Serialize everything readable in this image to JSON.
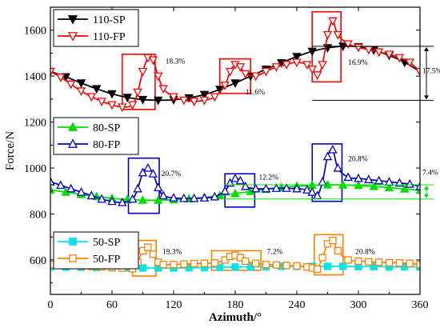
{
  "chart_data": {
    "type": "line",
    "title": "",
    "xlabel": "Azimuth/°",
    "ylabel": "Force/N",
    "xlim": [
      0,
      360
    ],
    "ylim": [
      450,
      1700
    ],
    "xticks": [
      0,
      60,
      120,
      180,
      240,
      300,
      360
    ],
    "yticks": [
      600,
      800,
      1000,
      1200,
      1400,
      1600
    ],
    "grid": false,
    "legends": [
      {
        "placement": "top-left",
        "entries": [
          "110-SP",
          "110-FP"
        ]
      },
      {
        "placement": "middle-left",
        "entries": [
          "80-SP",
          "80-FP"
        ]
      },
      {
        "placement": "bottom-left",
        "entries": [
          "50-SP",
          "50-FP"
        ]
      }
    ],
    "series": [
      {
        "name": "110-SP",
        "color": "#000000",
        "marker": "triangle-down",
        "filled": true,
        "x": [
          0,
          15,
          30,
          45,
          60,
          75,
          90,
          105,
          120,
          135,
          150,
          165,
          180,
          195,
          210,
          225,
          240,
          255,
          270,
          285,
          300,
          315,
          330,
          345,
          360
        ],
        "values": [
          1420,
          1397,
          1370,
          1345,
          1323,
          1307,
          1298,
          1295,
          1297,
          1305,
          1320,
          1342,
          1370,
          1400,
          1430,
          1458,
          1485,
          1508,
          1523,
          1530,
          1528,
          1513,
          1490,
          1460,
          1420
        ]
      },
      {
        "name": "110-FP",
        "color": "#ff0000",
        "marker": "triangle-down",
        "filled": false,
        "x": [
          0,
          10,
          20,
          30,
          40,
          50,
          60,
          70,
          80,
          85,
          90,
          95,
          100,
          105,
          110,
          120,
          130,
          140,
          150,
          160,
          170,
          175,
          180,
          185,
          190,
          200,
          210,
          220,
          230,
          240,
          250,
          255,
          260,
          265,
          270,
          275,
          280,
          290,
          300,
          310,
          320,
          330,
          340,
          350,
          360
        ],
        "values": [
          1420,
          1395,
          1365,
          1335,
          1310,
          1290,
          1275,
          1265,
          1275,
          1330,
          1420,
          1480,
          1470,
          1400,
          1345,
          1310,
          1295,
          1290,
          1295,
          1310,
          1360,
          1420,
          1450,
          1440,
          1410,
          1400,
          1420,
          1440,
          1450,
          1460,
          1450,
          1430,
          1405,
          1450,
          1580,
          1640,
          1580,
          1540,
          1525,
          1515,
          1505,
          1495,
          1480,
          1460,
          1420
        ]
      },
      {
        "name": "80-SP",
        "color": "#00e000",
        "marker": "triangle-up",
        "filled": true,
        "x": [
          0,
          15,
          30,
          45,
          60,
          75,
          90,
          105,
          120,
          135,
          150,
          165,
          180,
          195,
          210,
          225,
          240,
          255,
          270,
          285,
          300,
          315,
          330,
          345,
          360
        ],
        "values": [
          905,
          895,
          885,
          876,
          868,
          863,
          860,
          860,
          862,
          866,
          872,
          880,
          889,
          898,
          907,
          915,
          921,
          925,
          927,
          926,
          924,
          920,
          915,
          909,
          903
        ]
      },
      {
        "name": "80-FP",
        "color": "#0000cc",
        "marker": "triangle-up",
        "filled": false,
        "x": [
          0,
          10,
          20,
          30,
          40,
          50,
          60,
          70,
          80,
          85,
          90,
          95,
          100,
          105,
          110,
          120,
          130,
          140,
          150,
          160,
          170,
          175,
          180,
          185,
          190,
          200,
          210,
          220,
          230,
          240,
          250,
          255,
          260,
          265,
          270,
          275,
          280,
          290,
          300,
          310,
          320,
          330,
          340,
          350,
          360
        ],
        "values": [
          940,
          925,
          910,
          895,
          880,
          865,
          855,
          850,
          865,
          910,
          980,
          1000,
          975,
          915,
          880,
          870,
          868,
          868,
          870,
          875,
          900,
          935,
          955,
          945,
          920,
          910,
          910,
          912,
          912,
          910,
          905,
          895,
          880,
          940,
          1050,
          1080,
          1000,
          960,
          955,
          950,
          945,
          940,
          935,
          930,
          920
        ]
      },
      {
        "name": "50-SP",
        "color": "#00e5e5",
        "marker": "square",
        "filled": true,
        "x": [
          0,
          15,
          30,
          45,
          60,
          75,
          90,
          105,
          120,
          135,
          150,
          165,
          180,
          195,
          210,
          225,
          240,
          255,
          270,
          285,
          300,
          315,
          330,
          345,
          360
        ],
        "values": [
          570,
          569,
          568,
          567,
          566,
          565,
          565,
          565,
          565,
          566,
          567,
          568,
          569,
          570,
          571,
          572,
          572,
          572,
          572,
          572,
          571,
          571,
          570,
          570,
          570
        ]
      },
      {
        "name": "50-FP",
        "color": "#ff8000",
        "marker": "square",
        "filled": false,
        "x": [
          0,
          10,
          20,
          30,
          40,
          50,
          60,
          70,
          80,
          85,
          90,
          95,
          100,
          105,
          110,
          120,
          130,
          140,
          150,
          160,
          170,
          175,
          180,
          185,
          190,
          200,
          210,
          220,
          230,
          240,
          250,
          255,
          260,
          265,
          270,
          275,
          280,
          290,
          300,
          310,
          320,
          330,
          340,
          350,
          360
        ],
        "values": [
          580,
          578,
          576,
          574,
          572,
          570,
          568,
          565,
          562,
          590,
          640,
          655,
          625,
          590,
          580,
          580,
          582,
          584,
          585,
          587,
          600,
          615,
          620,
          610,
          595,
          585,
          580,
          578,
          576,
          574,
          570,
          565,
          560,
          610,
          670,
          685,
          640,
          600,
          595,
          592,
          590,
          588,
          587,
          585,
          580
        ]
      }
    ],
    "highlight_boxes": [
      {
        "color": "#ff0000",
        "x_range": [
          70,
          102
        ],
        "y_range": [
          1255,
          1495
        ],
        "label": "18.3%",
        "label_at": [
          112,
          1455
        ]
      },
      {
        "color": "#ff0000",
        "x_range": [
          165,
          195
        ],
        "y_range": [
          1325,
          1475
        ],
        "label": "11.6%",
        "label_at": [
          190,
          1320
        ]
      },
      {
        "color": "#ff0000",
        "x_range": [
          255,
          283
        ],
        "y_range": [
          1375,
          1680
        ],
        "label": "16.9%",
        "label_at": [
          290,
          1450
        ]
      },
      {
        "color": "#0000cc",
        "x_range": [
          76,
          106
        ],
        "y_range": [
          803,
          1043
        ],
        "label": "20.7%",
        "label_at": [
          108,
          965
        ]
      },
      {
        "color": "#0000cc",
        "x_range": [
          170,
          199
        ],
        "y_range": [
          830,
          975
        ],
        "label": "12.2%",
        "label_at": [
          203,
          950
        ]
      },
      {
        "color": "#0000cc",
        "x_range": [
          255,
          284
        ],
        "y_range": [
          855,
          1105
        ],
        "label": "20.8%",
        "label_at": [
          290,
          1030
        ]
      },
      {
        "color": "#ff8000",
        "x_range": [
          80,
          103
        ],
        "y_range": [
          530,
          685
        ],
        "label": "19.3%",
        "label_at": [
          109,
          625
        ]
      },
      {
        "color": "#ff8000",
        "x_range": [
          157,
          205
        ],
        "y_range": [
          555,
          640
        ],
        "label": "7.2%",
        "label_at": [
          211,
          625
        ]
      },
      {
        "color": "#ff8000",
        "x_range": [
          257,
          285
        ],
        "y_range": [
          535,
          710
        ],
        "label": "20.8%",
        "label_at": [
          297,
          625
        ]
      }
    ],
    "range_markers": [
      {
        "color": "#000000",
        "x_from": 255,
        "x_to": 361,
        "y_low": 1295,
        "y_high": 1530,
        "label": "17.5%",
        "label_at_y": 1412
      },
      {
        "color": "#00e000",
        "x_from": 170,
        "x_to": 361,
        "y_low": 865,
        "y_high": 927,
        "label": "7.4%",
        "label_at_y": 970
      }
    ]
  }
}
